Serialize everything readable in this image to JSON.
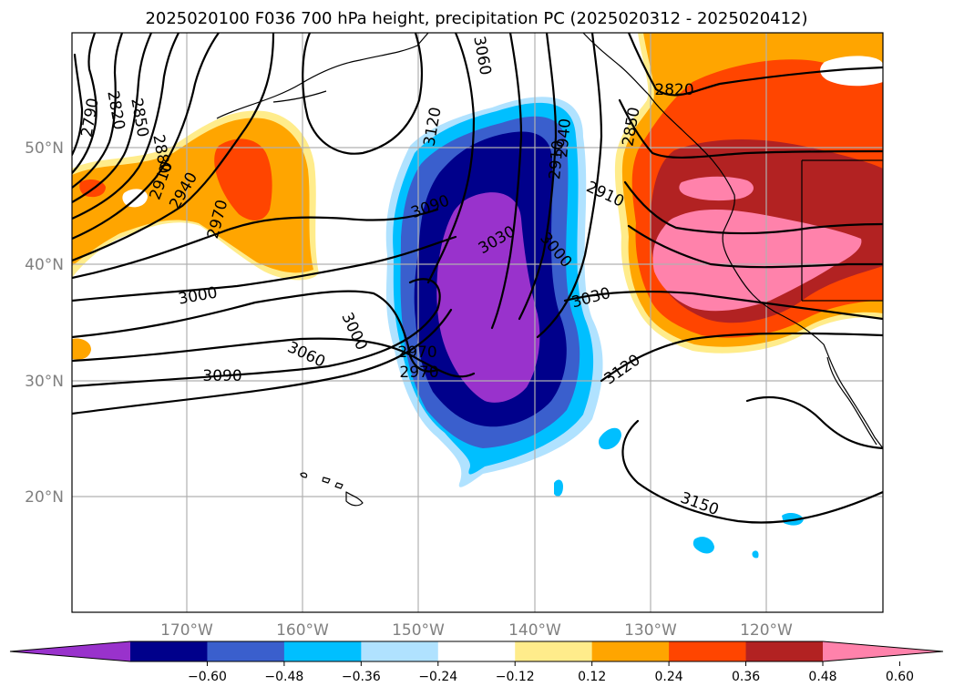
{
  "title": "2025020100 F036 700 hPa height, precipitation PC (2025020312 - 2025020412)",
  "lat_labels": [
    "50°N",
    "40°N",
    "30°N",
    "20°N"
  ],
  "lon_labels": [
    "170°W",
    "160°W",
    "150°W",
    "140°W",
    "130°W",
    "120°W"
  ],
  "colorbar": {
    "colors": [
      "#9932cc",
      "#00008b",
      "#3a5fcd",
      "#00bfff",
      "#b0e2ff",
      "#ffffff",
      "#ffec8b",
      "#ffa500",
      "#ff4500",
      "#b22222",
      "#ff82ab"
    ],
    "tick_labels": [
      "−0.60",
      "−0.48",
      "−0.36",
      "−0.24",
      "−0.12",
      "0.12",
      "0.24",
      "0.36",
      "0.48",
      "0.60"
    ]
  },
  "contour_labels": [
    "2790",
    "2820",
    "2850",
    "2880",
    "2910",
    "2940",
    "2970",
    "3000",
    "3030",
    "3060",
    "3090",
    "3120",
    "3150",
    "2820",
    "2850",
    "2910",
    "2940",
    "2940",
    "2970",
    "3000",
    "3030",
    "3090",
    "3120",
    "3060",
    "3000"
  ],
  "colors": {
    "gridline": "#b0b0b0",
    "label_gray": "#808080",
    "contour": "#000000"
  }
}
